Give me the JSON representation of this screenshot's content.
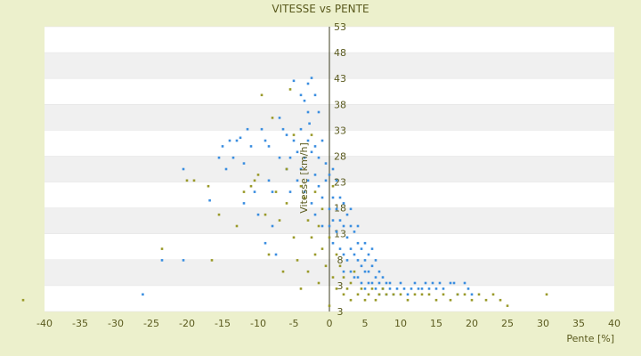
{
  "chart_data": {
    "type": "scatter",
    "title": "VITESSE vs PENTE",
    "xlabel": "Pente [%]",
    "ylabel": "Vitesse [km/h]",
    "xlim": [
      -40,
      40
    ],
    "ylim": [
      3,
      53
    ],
    "xticks": [
      "-40",
      "-35",
      "-30",
      "-25",
      "-20",
      "-15",
      "-10",
      "-5",
      "0",
      "5",
      "10",
      "15",
      "20",
      "25",
      "30",
      "35",
      "40"
    ],
    "yticks": [
      "3",
      "3",
      "8",
      "13",
      "18",
      "23",
      "28",
      "33",
      "38",
      "43",
      "48",
      "53"
    ],
    "grid": "horizontal bands",
    "legend": "none",
    "colors": {
      "blue": "#3a8ee0",
      "olive": "#9a9a2a",
      "band": "#f0f0f0",
      "plot_bg": "#ffffff",
      "page_bg": "#ecf0cc"
    },
    "series": [
      {
        "color": "blue",
        "points": [
          [
            -26.2,
            6
          ],
          [
            -23.5,
            12
          ],
          [
            -20.5,
            12
          ],
          [
            -20.5,
            28
          ],
          [
            -16.8,
            22.5
          ],
          [
            -15.5,
            30
          ],
          [
            -15,
            32
          ],
          [
            -14.5,
            28
          ],
          [
            -14,
            33
          ],
          [
            -13.5,
            30
          ],
          [
            -13,
            33
          ],
          [
            -12.5,
            33.5
          ],
          [
            -12,
            29
          ],
          [
            -12,
            22
          ],
          [
            -11.5,
            35
          ],
          [
            -11,
            32
          ],
          [
            -10.5,
            24
          ],
          [
            -10,
            20
          ],
          [
            -9.5,
            35
          ],
          [
            -9,
            33
          ],
          [
            -9,
            15
          ],
          [
            -8.5,
            32
          ],
          [
            -8.5,
            26
          ],
          [
            -8,
            24
          ],
          [
            -8,
            18
          ],
          [
            -7.5,
            13
          ],
          [
            -7,
            37
          ],
          [
            -7,
            30
          ],
          [
            -6.5,
            35
          ],
          [
            -6,
            28
          ],
          [
            -6,
            34
          ],
          [
            -5.5,
            30
          ],
          [
            -5.5,
            24
          ],
          [
            -5,
            43.5
          ],
          [
            -5,
            33
          ],
          [
            -4.5,
            31
          ],
          [
            -4.5,
            26
          ],
          [
            -4,
            41
          ],
          [
            -4,
            35
          ],
          [
            -4,
            28
          ],
          [
            -3.5,
            40
          ],
          [
            -3.5,
            30
          ],
          [
            -3.5,
            24
          ],
          [
            -3,
            43
          ],
          [
            -3,
            38
          ],
          [
            -3,
            33
          ],
          [
            -3,
            26
          ],
          [
            -2.8,
            36
          ],
          [
            -2.5,
            44
          ],
          [
            -2.5,
            31
          ],
          [
            -2.5,
            22
          ],
          [
            -2,
            41
          ],
          [
            -2,
            32
          ],
          [
            -2,
            27
          ],
          [
            -2,
            20
          ],
          [
            -1.5,
            38
          ],
          [
            -1.5,
            30
          ],
          [
            -1.5,
            25
          ],
          [
            -1,
            33
          ],
          [
            -1,
            23
          ],
          [
            -1,
            18
          ],
          [
            -0.5,
            29
          ],
          [
            -0.5,
            26
          ],
          [
            0,
            27
          ],
          [
            0,
            21
          ],
          [
            0,
            18
          ],
          [
            0.5,
            28
          ],
          [
            0.5,
            23
          ],
          [
            0.5,
            19
          ],
          [
            0.5,
            15
          ],
          [
            1,
            26
          ],
          [
            1,
            21
          ],
          [
            1,
            17
          ],
          [
            1.5,
            23
          ],
          [
            1.5,
            19
          ],
          [
            1.5,
            14
          ],
          [
            2,
            22
          ],
          [
            2,
            18
          ],
          [
            2,
            13
          ],
          [
            2,
            10
          ],
          [
            2.5,
            20
          ],
          [
            2.5,
            16
          ],
          [
            2.5,
            12
          ],
          [
            3,
            21
          ],
          [
            3,
            18
          ],
          [
            3,
            14
          ],
          [
            3,
            10
          ],
          [
            3.5,
            17
          ],
          [
            3.5,
            13
          ],
          [
            3.5,
            9
          ],
          [
            4,
            18
          ],
          [
            4,
            15
          ],
          [
            4,
            12
          ],
          [
            4,
            9
          ],
          [
            4.5,
            14
          ],
          [
            4.5,
            11
          ],
          [
            4.5,
            8
          ],
          [
            5,
            15
          ],
          [
            5,
            12
          ],
          [
            5,
            10
          ],
          [
            5,
            7
          ],
          [
            5.5,
            13
          ],
          [
            5.5,
            10
          ],
          [
            5.5,
            8
          ],
          [
            6,
            14
          ],
          [
            6,
            11
          ],
          [
            6,
            8
          ],
          [
            6.5,
            12
          ],
          [
            6.5,
            9
          ],
          [
            6.5,
            7
          ],
          [
            7,
            10
          ],
          [
            7,
            8
          ],
          [
            7,
            6
          ],
          [
            7.5,
            9
          ],
          [
            7.5,
            7
          ],
          [
            8,
            8
          ],
          [
            8,
            6
          ],
          [
            8.5,
            7
          ],
          [
            8.5,
            8
          ],
          [
            9,
            6
          ],
          [
            9.5,
            7
          ],
          [
            10,
            8
          ],
          [
            10.5,
            7
          ],
          [
            11,
            6
          ],
          [
            11.5,
            7
          ],
          [
            12,
            8
          ],
          [
            12.5,
            7
          ],
          [
            13,
            7
          ],
          [
            13.5,
            8
          ],
          [
            14,
            7
          ],
          [
            14.5,
            8
          ],
          [
            15,
            7
          ],
          [
            15.5,
            8
          ],
          [
            16,
            7
          ],
          [
            17,
            8
          ],
          [
            17.5,
            8
          ],
          [
            18,
            6
          ],
          [
            19,
            8
          ],
          [
            19.5,
            7
          ],
          [
            20,
            6
          ]
        ]
      },
      {
        "color": "olive",
        "points": [
          [
            -43,
            5
          ],
          [
            -23.5,
            14
          ],
          [
            -20,
            26
          ],
          [
            -19,
            26
          ],
          [
            -17,
            25
          ],
          [
            -16.5,
            12
          ],
          [
            -15.5,
            20
          ],
          [
            -13,
            18
          ],
          [
            -12,
            24
          ],
          [
            -11,
            25
          ],
          [
            -10.5,
            26
          ],
          [
            -10,
            27
          ],
          [
            -9.5,
            41
          ],
          [
            -9,
            20
          ],
          [
            -8.5,
            13
          ],
          [
            -8,
            37
          ],
          [
            -7.5,
            24
          ],
          [
            -7,
            19
          ],
          [
            -6.5,
            10
          ],
          [
            -6,
            28
          ],
          [
            -6,
            22
          ],
          [
            -5.5,
            42
          ],
          [
            -5,
            34
          ],
          [
            -5,
            16
          ],
          [
            -4.5,
            12
          ],
          [
            -4,
            25
          ],
          [
            -4,
            7
          ],
          [
            -3.5,
            23
          ],
          [
            -3,
            19
          ],
          [
            -3,
            10
          ],
          [
            -2.5,
            16
          ],
          [
            -2.5,
            34
          ],
          [
            -2,
            13
          ],
          [
            -2,
            24
          ],
          [
            -1.5,
            18
          ],
          [
            -1.5,
            8
          ],
          [
            -1,
            14
          ],
          [
            -1,
            21
          ],
          [
            -0.5,
            11
          ],
          [
            0,
            4
          ],
          [
            0,
            16
          ],
          [
            0.5,
            25
          ],
          [
            0.5,
            9
          ],
          [
            1,
            13
          ],
          [
            1,
            7
          ],
          [
            1.5,
            11
          ],
          [
            2,
            6
          ],
          [
            2,
            9
          ],
          [
            2.5,
            7
          ],
          [
            3,
            5
          ],
          [
            3,
            8
          ],
          [
            3.5,
            10
          ],
          [
            4,
            6
          ],
          [
            4.5,
            7
          ],
          [
            5,
            5
          ],
          [
            5.5,
            6
          ],
          [
            6,
            7
          ],
          [
            6.5,
            5
          ],
          [
            7,
            6
          ],
          [
            7.5,
            7
          ],
          [
            8,
            6
          ],
          [
            9,
            6
          ],
          [
            10,
            6
          ],
          [
            11,
            5
          ],
          [
            12,
            6
          ],
          [
            13,
            6
          ],
          [
            14,
            6
          ],
          [
            15,
            5
          ],
          [
            16,
            6
          ],
          [
            17,
            5
          ],
          [
            18,
            6
          ],
          [
            19,
            6
          ],
          [
            20,
            5
          ],
          [
            21,
            6
          ],
          [
            22,
            5
          ],
          [
            23,
            6
          ],
          [
            24,
            5
          ],
          [
            25,
            4
          ],
          [
            30.5,
            6
          ]
        ]
      }
    ]
  }
}
